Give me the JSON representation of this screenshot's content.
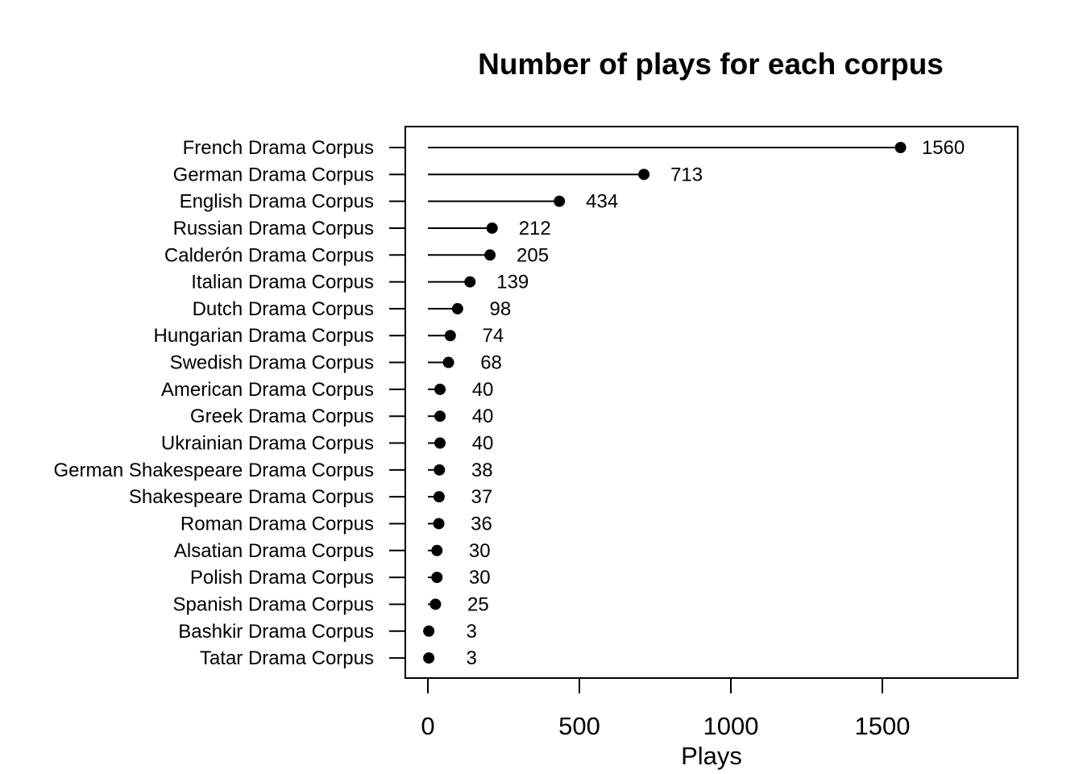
{
  "chart_data": {
    "type": "scatter",
    "title": "Number of plays for each corpus",
    "xlabel": "Plays",
    "ylabel": "",
    "xlim": [
      -70,
      1950
    ],
    "xticks": [
      0,
      500,
      1000,
      1500
    ],
    "grid": false,
    "legend": "none",
    "categories": [
      "French Drama Corpus",
      "German Drama Corpus",
      "English Drama Corpus",
      "Russian Drama Corpus",
      "Calderón Drama Corpus",
      "Italian Drama Corpus",
      "Dutch Drama Corpus",
      "Hungarian Drama Corpus",
      "Swedish Drama Corpus",
      "American Drama Corpus",
      "Greek Drama Corpus",
      "Ukrainian Drama Corpus",
      "German Shakespeare Drama Corpus",
      "Shakespeare Drama Corpus",
      "Roman Drama Corpus",
      "Alsatian Drama Corpus",
      "Polish Drama Corpus",
      "Spanish Drama Corpus",
      "Bashkir Drama Corpus",
      "Tatar Drama Corpus"
    ],
    "values": [
      1560,
      713,
      434,
      212,
      205,
      139,
      98,
      74,
      68,
      40,
      40,
      40,
      38,
      37,
      36,
      30,
      30,
      25,
      3,
      3
    ],
    "point_color": "#000000",
    "line_color": "#000000"
  }
}
